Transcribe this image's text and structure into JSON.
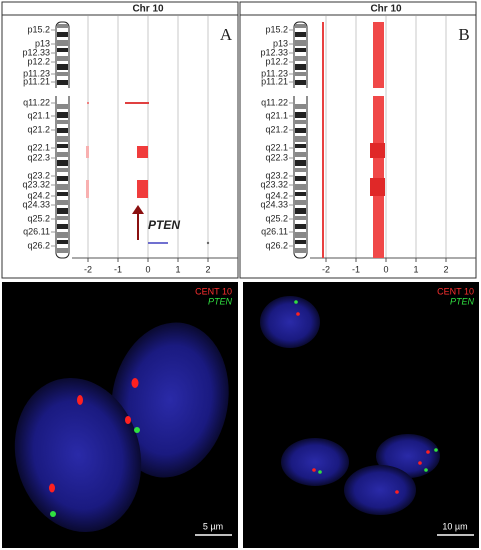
{
  "panels": [
    {
      "label": "A",
      "title": "Chr 10",
      "bands": [
        "p15.2",
        "p13",
        "p12.33",
        "p12.2",
        "p11.23",
        "p11.21",
        "q11.22",
        "q21.1",
        "q21.2",
        "q22.1",
        "q22.3",
        "q23.2",
        "q23.32",
        "q24.2",
        "q24.33",
        "q25.2",
        "q26.11",
        "q26.2"
      ],
      "x_ticks": [
        "-2",
        "-1",
        "0",
        "1",
        "2"
      ],
      "annotation": "PTEN"
    },
    {
      "label": "B",
      "title": "Chr 10",
      "bands": [
        "p15.2",
        "p13",
        "p12.33",
        "p12.2",
        "p11.23",
        "p11.21",
        "q11.22",
        "q21.1",
        "q21.2",
        "q22.1",
        "q22.3",
        "q23.2",
        "q23.32",
        "q24.2",
        "q24.33",
        "q25.2",
        "q26.11",
        "q26.2"
      ],
      "x_ticks": [
        "-2",
        "-1",
        "0",
        "1",
        "2"
      ]
    }
  ],
  "fish": [
    {
      "legend": [
        "CENT 10",
        "PTEN"
      ],
      "scale_bar": "5 µm"
    },
    {
      "legend": [
        "CENT 10",
        "PTEN"
      ],
      "scale_bar": "10 µm"
    }
  ]
}
